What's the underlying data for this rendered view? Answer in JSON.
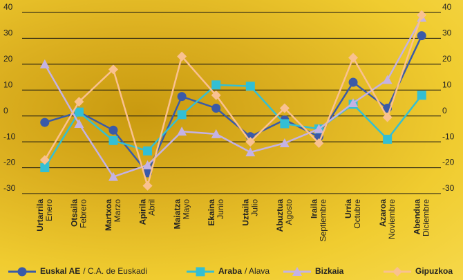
{
  "chart_data": {
    "type": "line",
    "categories": [
      "Urtarrila",
      "Otsaila",
      "Martxoa",
      "Apirila",
      "Maiatza",
      "Ekaina",
      "Uztaila",
      "Abuztua",
      "Iraila",
      "Urria",
      "Azaroa",
      "Abendua"
    ],
    "categories_es": [
      "Enero",
      "Febrero",
      "Marzo",
      "Abril",
      "Mayo",
      "Junio",
      "Julio",
      "Agosto",
      "Septiembre",
      "Octubre",
      "Noviembre",
      "Diciembre"
    ],
    "series": [
      {
        "name": "Euskal AE",
        "name_es": "/ C.A. de Euskadi",
        "color": "#3a5aa8",
        "marker": "circle",
        "values": [
          -2.5,
          1.5,
          -5.5,
          -22,
          7.5,
          3,
          -8,
          -1.5,
          -8,
          13,
          3,
          31
        ]
      },
      {
        "name": "Araba",
        "name_es": "/ Alava",
        "color": "#33bfd4",
        "marker": "square",
        "values": [
          -20,
          1.5,
          -9.5,
          -13.5,
          0.5,
          12,
          11.5,
          -3,
          -5,
          4.5,
          -9,
          8
        ]
      },
      {
        "name": "Bizkaia",
        "color": "#c4b2e4",
        "marker": "triangle",
        "values": [
          20,
          -3,
          -23.5,
          -19,
          -6,
          -7,
          -14,
          -10.5,
          -5,
          5,
          14,
          38
        ]
      },
      {
        "name": "Gipuzkoa",
        "color": "#f9c190",
        "marker": "diamond",
        "values": [
          -17,
          5.5,
          18,
          -27,
          23,
          8,
          -10,
          3,
          -10.5,
          22.5,
          -0.5,
          39
        ]
      }
    ],
    "ylim": [
      -30,
      40
    ],
    "yticks": [
      -30,
      -20,
      -10,
      0,
      10,
      20,
      30,
      40
    ],
    "grid": true
  }
}
